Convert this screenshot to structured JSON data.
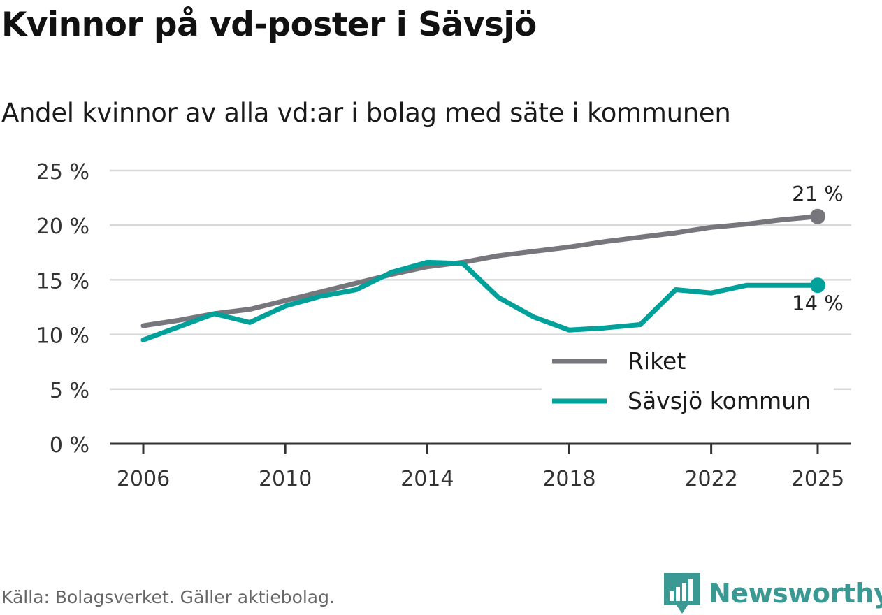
{
  "header": {
    "title": "Kvinnor på vd-poster i Sävsjö",
    "subtitle": "Andel kvinnor av alla vd:ar i bolag med säte i kommunen"
  },
  "chart_data": {
    "type": "line",
    "title": "Kvinnor på vd-poster i Sävsjö",
    "subtitle": "Andel kvinnor av alla vd:ar i bolag med säte i kommunen",
    "xlabel": "",
    "ylabel": "",
    "x": [
      2006,
      2007,
      2008,
      2009,
      2010,
      2011,
      2012,
      2013,
      2014,
      2015,
      2016,
      2017,
      2018,
      2019,
      2020,
      2021,
      2022,
      2023,
      2024,
      2025
    ],
    "x_ticks": [
      2006,
      2010,
      2014,
      2018,
      2022,
      2025
    ],
    "y_ticks": [
      0,
      5,
      10,
      15,
      20,
      25
    ],
    "y_tick_labels": [
      "0 %",
      "5 %",
      "10 %",
      "15 %",
      "20 %",
      "25 %"
    ],
    "ylim": [
      0,
      25
    ],
    "grid": true,
    "legend_position": "bottom-right",
    "series": [
      {
        "name": "Riket",
        "color": "#76767c",
        "values": [
          10.8,
          11.3,
          11.9,
          12.3,
          13.1,
          13.9,
          14.7,
          15.5,
          16.2,
          16.6,
          17.2,
          17.6,
          18.0,
          18.5,
          18.9,
          19.3,
          19.8,
          20.1,
          20.5,
          20.8
        ],
        "end_label": "21 %"
      },
      {
        "name": "Sävsjö kommun",
        "color": "#00a19a",
        "values": [
          9.5,
          10.7,
          11.9,
          11.1,
          12.6,
          13.5,
          14.1,
          15.7,
          16.6,
          16.5,
          13.4,
          11.6,
          10.4,
          10.6,
          10.9,
          14.1,
          13.8,
          14.5,
          14.5,
          14.5
        ],
        "end_label": "14 %"
      }
    ]
  },
  "footer": {
    "source": "Källa: Bolagsverket. Gäller aktiebolag.",
    "brand": "Newsworthy",
    "brand_color": "#3a9a93"
  }
}
